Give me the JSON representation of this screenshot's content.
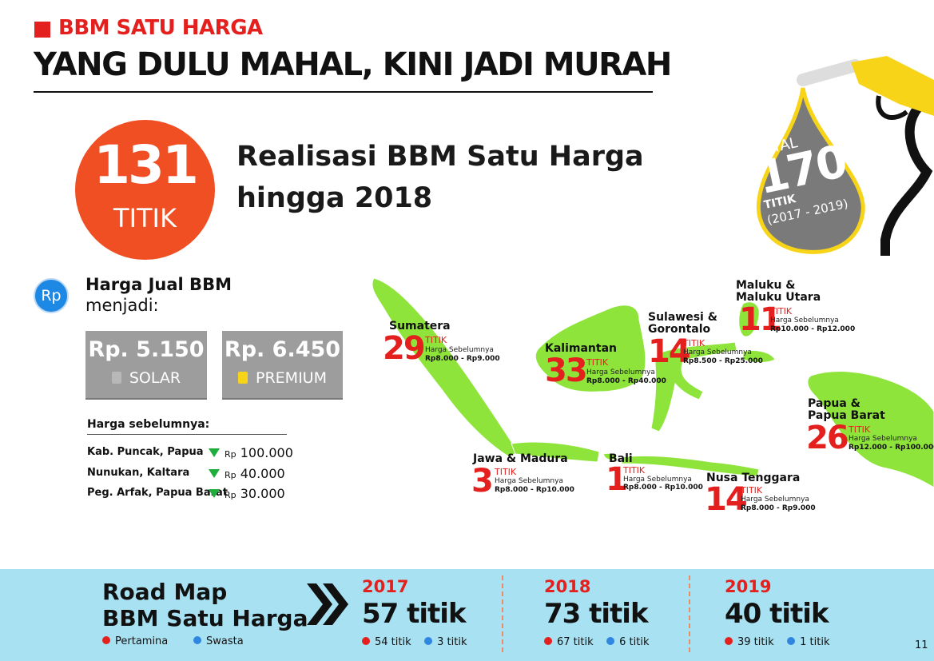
{
  "header": {
    "kicker": "BBM SATU HARGA",
    "headline": "YANG DULU MAHAL, KINI JADI MURAH"
  },
  "realisasi": {
    "number": "131",
    "unit": "TITIK",
    "text_line1": "Realisasi BBM Satu Harga",
    "text_line2": "hingga 2018"
  },
  "total": {
    "label": "TOTAL",
    "number": "170",
    "unit": "TITIK",
    "range": "(2017 - 2019)"
  },
  "price": {
    "badge": "Rp",
    "title": "Harga Jual BBM",
    "subtitle": "menjadi:",
    "solar": {
      "value": "Rp. 5.150",
      "label": "SOLAR",
      "icon": "fuel-pump-icon"
    },
    "premium": {
      "value": "Rp. 6.450",
      "label": "PREMIUM",
      "icon": "fuel-pump-icon"
    },
    "previous_title": "Harga sebelumnya:",
    "previous": [
      {
        "location": "Kab. Puncak, Papua",
        "currency": "Rp",
        "amount": "100.000"
      },
      {
        "location": "Nunukan, Kaltara",
        "currency": "Rp",
        "amount": "40.000"
      },
      {
        "location": "Peg. Arfak, Papua Barat",
        "currency": "Rp",
        "amount": "30.000"
      }
    ]
  },
  "map": {
    "regions": [
      {
        "name": "Sumatera",
        "count": "29",
        "unit": "TITIK",
        "prev_label": "Harga Sebelumnya",
        "prev_range": "Rp8.000 - Rp9.000"
      },
      {
        "name": "Kalimantan",
        "count": "33",
        "unit": "TITIK",
        "prev_label": "Harga Sebelumnya",
        "prev_range": "Rp8.000 - Rp40.000"
      },
      {
        "name_line1": "Sulawesi &",
        "name_line2": "Gorontalo",
        "count": "14",
        "unit": "TITIK",
        "prev_label": "Harga Sebelumnya",
        "prev_range": "Rp8.500 - Rp25.000"
      },
      {
        "name_line1": "Maluku &",
        "name_line2": "Maluku Utara",
        "count": "11",
        "unit": "TITIK",
        "prev_label": "Harga Sebelumnya",
        "prev_range": "Rp10.000 - Rp12.000"
      },
      {
        "name_line1": "Papua &",
        "name_line2": "Papua Barat",
        "count": "26",
        "unit": "TITIK",
        "prev_label": "Harga Sebelumnya",
        "prev_range": "Rp12.000 - Rp100.000"
      },
      {
        "name": "Jawa & Madura",
        "count": "3",
        "unit": "TITIK",
        "prev_label": "Harga Sebelumnya",
        "prev_range": "Rp8.000 - Rp10.000"
      },
      {
        "name": "Bali",
        "count": "1",
        "unit": "TITIK",
        "prev_label": "Harga Sebelumnya",
        "prev_range": "Rp8.000 - Rp10.000"
      },
      {
        "name": "Nusa Tenggara",
        "count": "14",
        "unit": "TITIK",
        "prev_label": "Harga Sebelumnya",
        "prev_range": "Rp8.000 - Rp9.000"
      }
    ],
    "land_color": "#8ee43a"
  },
  "roadmap": {
    "title_line1": "Road Map",
    "title_line2": "BBM Satu Harga",
    "legend_pertamina": "Pertamina",
    "legend_swasta": "Swasta",
    "years": [
      {
        "year": "2017",
        "total": "57 titik",
        "pertamina": "54 titik",
        "swasta": "3 titik"
      },
      {
        "year": "2018",
        "total": "73 titik",
        "pertamina": "67 titik",
        "swasta": "6 titik"
      },
      {
        "year": "2019",
        "total": "40 titik",
        "pertamina": "39 titik",
        "swasta": "1 titik"
      }
    ]
  },
  "page_number": "11",
  "colors": {
    "accent_red": "#e4201f",
    "circle_orange": "#f04e23",
    "drop_grey": "#7a7a7a",
    "drop_yellow": "#f7d417",
    "footer_blue": "#a8e2f2",
    "pertamina_dot": "#e4201f",
    "swasta_dot": "#2f86e0",
    "down_arrow": "#1fae3b"
  }
}
